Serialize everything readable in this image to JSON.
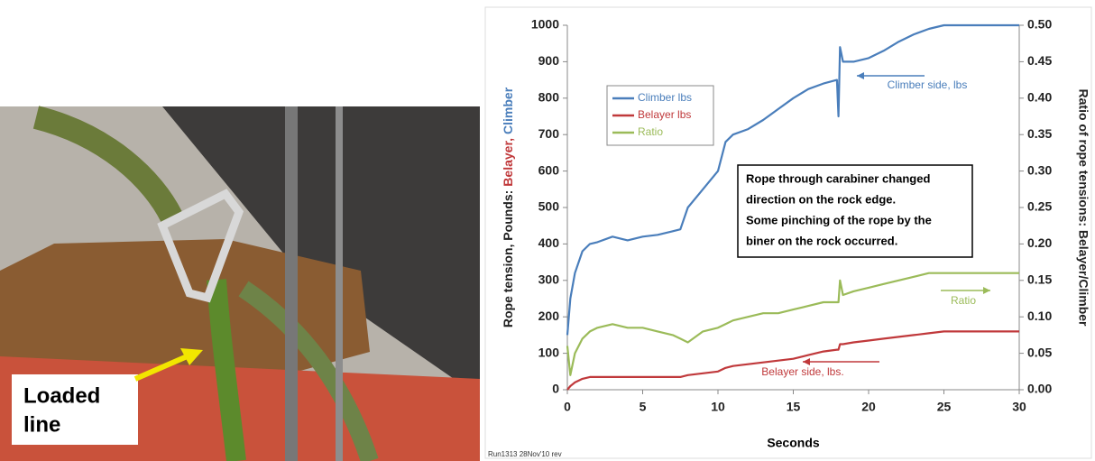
{
  "photo": {
    "label_lines": [
      "Loaded",
      "line"
    ]
  },
  "chart_data": {
    "type": "line",
    "x_label": "Seconds",
    "y_label_parts": [
      {
        "text": "Rope tension, Pounds:",
        "color": "#222222"
      },
      {
        "text": "Belayer,",
        "color": "#c0393b"
      },
      {
        "text": "Climber",
        "color": "#4a7ebb"
      }
    ],
    "y2_label": "Ratio of rope tensions: Belayer/Climber",
    "footer": "Run1313 28Nov'10 rev",
    "xlim": [
      0,
      30
    ],
    "xticks": [
      0,
      5,
      10,
      15,
      20,
      25,
      30
    ],
    "ylim": [
      0,
      1000
    ],
    "yticks": [
      0,
      100,
      200,
      300,
      400,
      500,
      600,
      700,
      800,
      900,
      1000
    ],
    "y2lim": [
      0,
      0.5
    ],
    "y2ticks": [
      {
        "value": 0,
        "label": "0.00"
      },
      {
        "value": 0.05,
        "label": "0.05"
      },
      {
        "value": 0.1,
        "label": "0.10"
      },
      {
        "value": 0.15,
        "label": "0.15"
      },
      {
        "value": 0.2,
        "label": "0.20"
      },
      {
        "value": 0.25,
        "label": "0.25"
      },
      {
        "value": 0.3,
        "label": "0.30"
      },
      {
        "value": 0.35,
        "label": "0.35"
      },
      {
        "value": 0.4,
        "label": "0.40"
      },
      {
        "value": 0.45,
        "label": "0.45"
      },
      {
        "value": 0.5,
        "label": "0.50"
      }
    ],
    "legend_position": "upper left",
    "x": [
      0,
      0.2,
      0.5,
      1,
      1.5,
      2,
      3,
      4,
      5,
      6,
      7,
      7.5,
      8,
      9,
      10,
      10.5,
      11,
      12,
      13,
      14,
      15,
      16,
      17,
      17.9,
      18,
      18.1,
      18.3,
      19,
      20,
      21,
      22,
      23,
      24,
      25,
      26,
      27,
      28,
      29,
      30
    ],
    "series": [
      {
        "name": "Climber lbs",
        "color": "#4a7ebb",
        "values": [
          150,
          250,
          320,
          380,
          400,
          405,
          420,
          410,
          420,
          425,
          435,
          440,
          500,
          550,
          600,
          680,
          700,
          715,
          740,
          770,
          800,
          825,
          840,
          850,
          750,
          940,
          900,
          900,
          910,
          930,
          955,
          975,
          990,
          1000,
          1000,
          1000,
          1000,
          1000,
          1000
        ]
      },
      {
        "name": "Belayer lbs",
        "color": "#c0393b",
        "values": [
          0,
          10,
          20,
          30,
          35,
          35,
          35,
          35,
          35,
          35,
          35,
          35,
          40,
          45,
          50,
          60,
          65,
          70,
          75,
          80,
          85,
          95,
          105,
          110,
          110,
          125,
          125,
          130,
          135,
          140,
          145,
          150,
          155,
          160,
          160,
          160,
          160,
          160,
          160
        ]
      },
      {
        "name": "Ratio",
        "color": "#9bbb59",
        "axis": "y2",
        "values": [
          0.06,
          0.02,
          0.05,
          0.07,
          0.08,
          0.085,
          0.09,
          0.085,
          0.085,
          0.08,
          0.075,
          0.07,
          0.065,
          0.08,
          0.085,
          0.09,
          0.095,
          0.1,
          0.105,
          0.105,
          0.11,
          0.115,
          0.12,
          0.12,
          0.12,
          0.15,
          0.13,
          0.135,
          0.14,
          0.145,
          0.15,
          0.155,
          0.16,
          0.16,
          0.16,
          0.16,
          0.16,
          0.16,
          0.16
        ]
      }
    ],
    "annotations": [
      {
        "text": "Climber side, lbs",
        "series": 0
      },
      {
        "text": "Belayer side, lbs.",
        "series": 1
      },
      {
        "text": "Ratio",
        "series": 2
      }
    ],
    "note_lines": [
      "Rope through carabiner changed",
      "direction on the rock edge.",
      "Some pinching of the rope by the",
      "biner on the rock occurred."
    ]
  }
}
